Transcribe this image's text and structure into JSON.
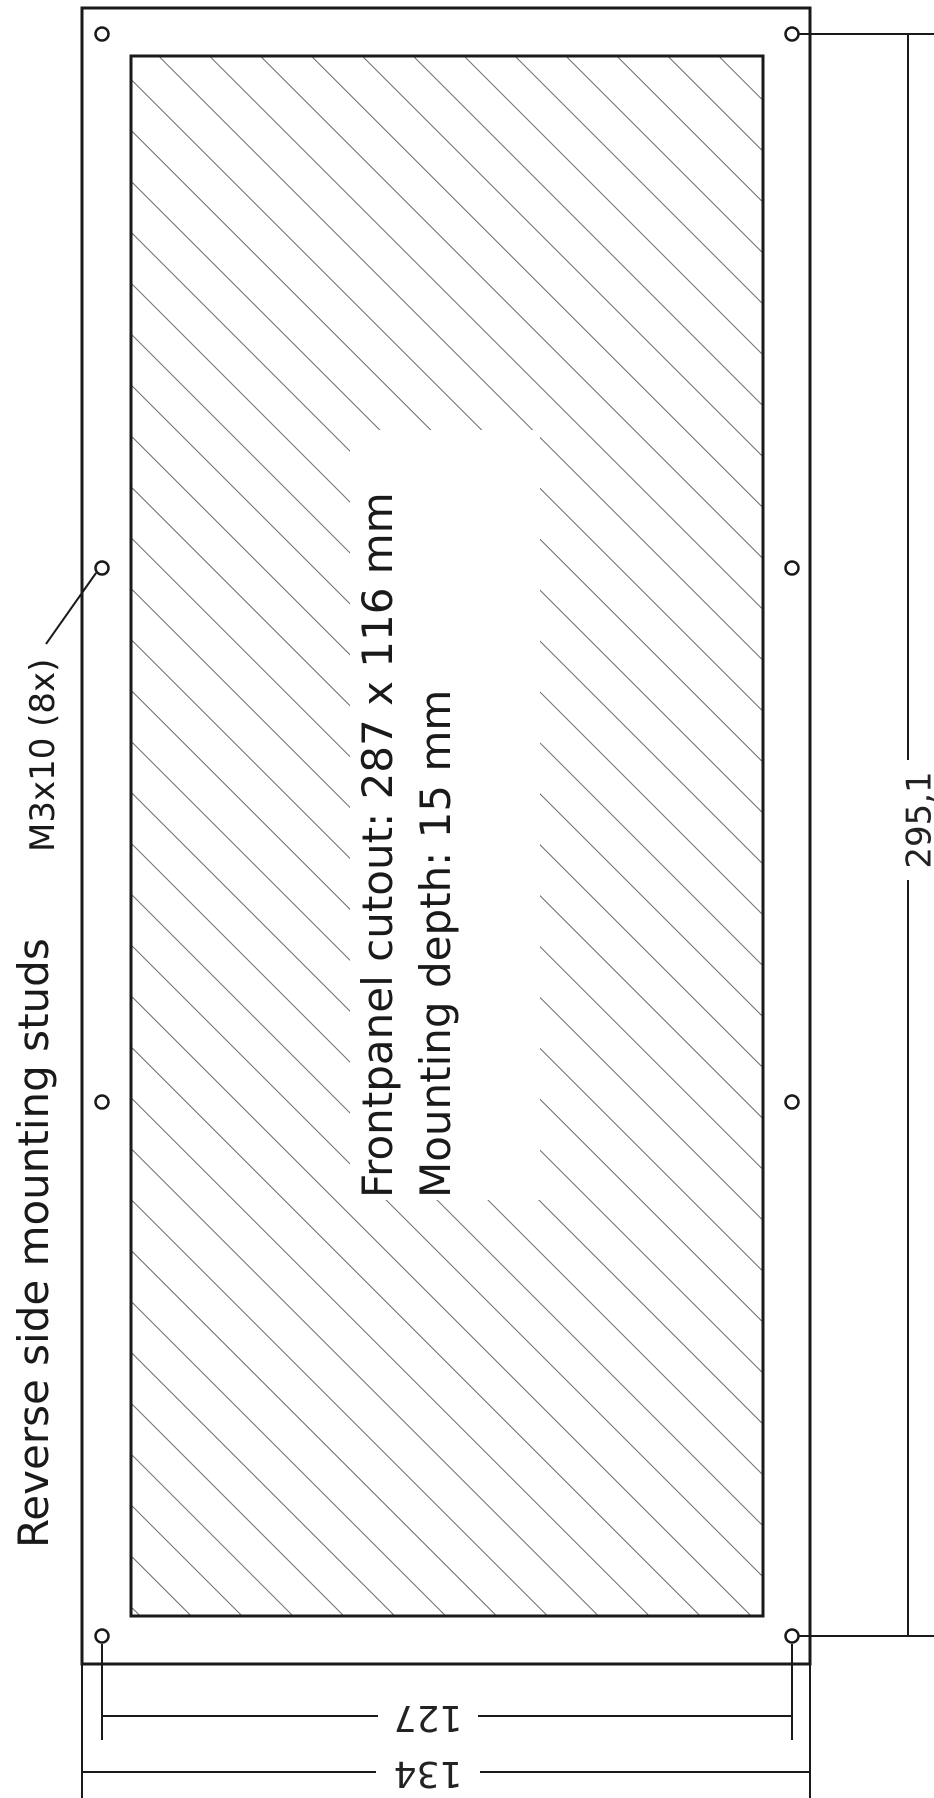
{
  "labels": {
    "studs": "Reverse side mounting studs",
    "studs_spec": "M3x10 (8x)",
    "cutout": "Frontpanel cutout: 287 x 116 mm",
    "depth": "Mounting depth: 15 mm"
  },
  "dimensions": {
    "height_between_studs": "295,1",
    "stud_spacing": "127",
    "overall_width": "134"
  },
  "colors": {
    "line": "#1a1a1a",
    "hatch": "#6a6a6a",
    "background": "#ffffff"
  }
}
